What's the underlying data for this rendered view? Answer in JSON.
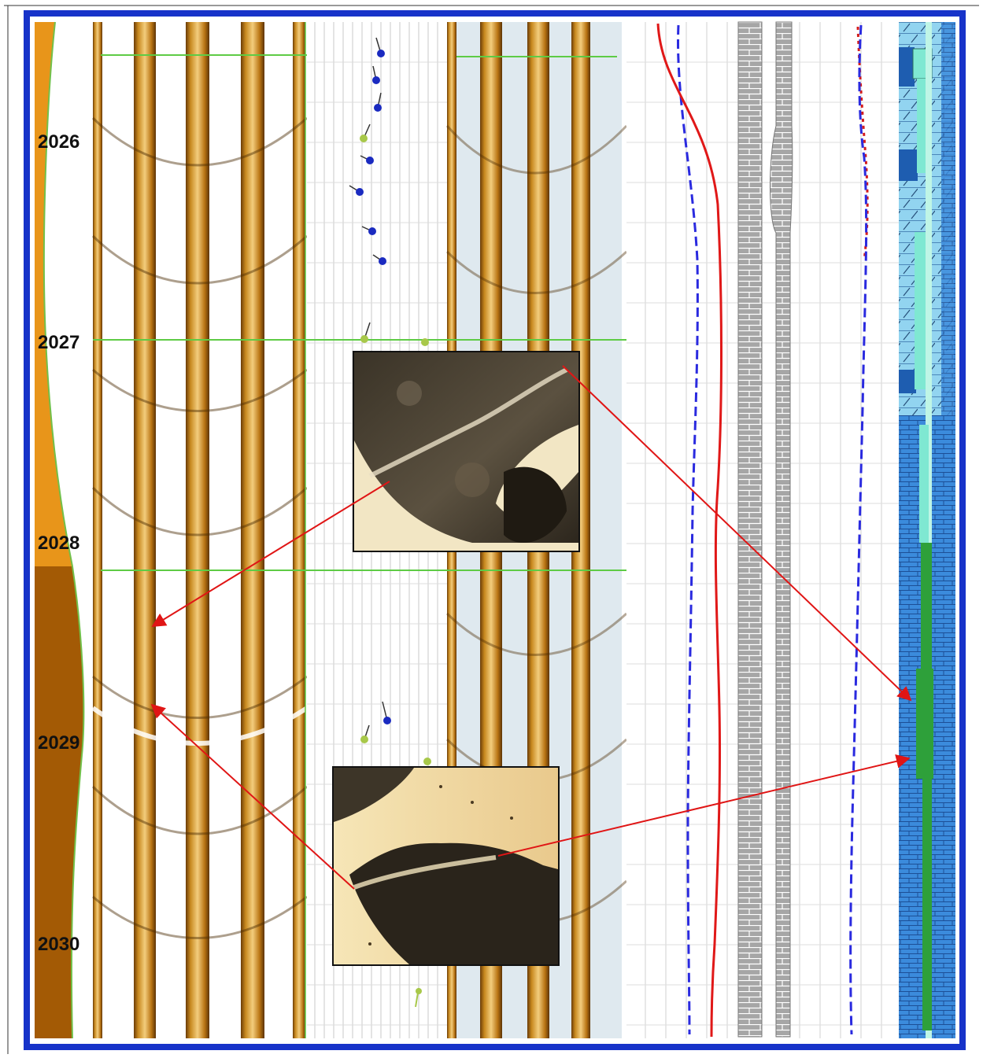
{
  "depth_track": {
    "labels": [
      "2026",
      "2027",
      "2028",
      "2029",
      "2030"
    ]
  },
  "colors": {
    "frame_blue": "#1733c9",
    "annotation_red": "#e01515",
    "boundary_green": "#5ecb45",
    "image_log_amber": "#c98a24",
    "image_log_dark": "#7a4a0c",
    "gr_fill_orange": "#e8951a",
    "gr_fill_brown": "#a35a05",
    "curve_blue_dashed": "#2a2adf",
    "curve_red": "#e01818",
    "lithology_gray": "#9a9a9a",
    "facies_light_blue": "#8fd2ef",
    "facies_mid_blue": "#3d8ede",
    "facies_green": "#2ea03a",
    "facies_teal": "#7fe8d2",
    "dip_blue": "#1a2ac0",
    "dip_green": "#a8c84a"
  },
  "icons": {
    "dip_marker_blue": "tadpole-icon",
    "dip_marker_green": "tadpole-icon",
    "arrow": "arrow-icon"
  }
}
